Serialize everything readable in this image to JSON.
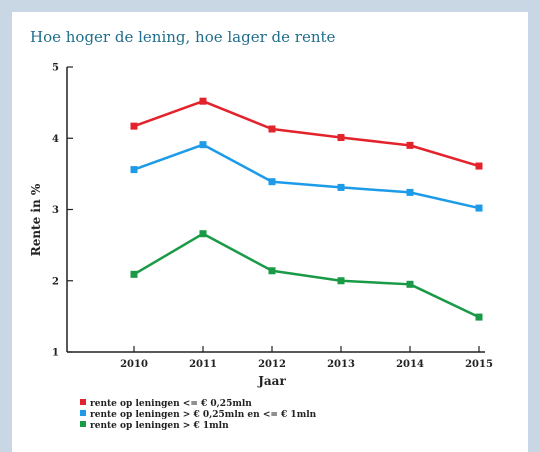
{
  "chart_data": {
    "type": "line",
    "title": "Hoe hoger de lening, hoe lager de rente",
    "xlabel": "Jaar",
    "ylabel": "Rente in %",
    "x": [
      "2010",
      "2011",
      "2012",
      "2013",
      "2014",
      "2015"
    ],
    "y_ticks": [
      "1",
      "2",
      "3",
      "4",
      "5"
    ],
    "ylim": [
      1,
      5
    ],
    "grid": false,
    "legend_position": "bottom-left",
    "series": [
      {
        "name": "rente op leningen <= € 0,25mln",
        "color": "#e3232c",
        "values": [
          4.17,
          4.52,
          4.13,
          4.01,
          3.9,
          3.61
        ]
      },
      {
        "name": "rente op leningen > € 0,25mln en <= € 1mln",
        "color": "#1e9be8",
        "values": [
          3.56,
          3.91,
          3.39,
          3.31,
          3.24,
          3.02
        ]
      },
      {
        "name": "rente op leningen > € 1mln",
        "color": "#1a9a46",
        "values": [
          2.09,
          2.66,
          2.14,
          2.0,
          1.95,
          1.49
        ]
      }
    ]
  }
}
